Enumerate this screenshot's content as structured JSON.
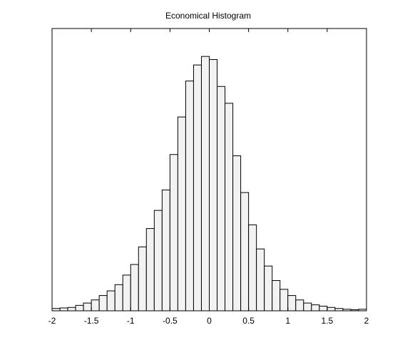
{
  "chart_data": {
    "type": "bar",
    "title": "Economical Histogram",
    "xlabel": "",
    "ylabel": "",
    "xlim": [
      -2,
      2
    ],
    "ylim": [
      0,
      1
    ],
    "x_ticks": [
      -2,
      -1.5,
      -1,
      -0.5,
      0,
      0.5,
      1,
      1.5,
      2
    ],
    "x_tick_labels": [
      "-2",
      "-1.5",
      "-1",
      "-0.5",
      "0",
      "0.5",
      "1",
      "1.5",
      "2"
    ],
    "y_ticks_visible": false,
    "grid": false,
    "bin_width": 0.1,
    "bin_edges_start": -2,
    "values": [
      0.009,
      0.011,
      0.013,
      0.021,
      0.03,
      0.042,
      0.059,
      0.077,
      0.101,
      0.138,
      0.179,
      0.247,
      0.318,
      0.388,
      0.467,
      0.604,
      0.749,
      0.888,
      0.95,
      0.983,
      0.971,
      0.867,
      0.802,
      0.599,
      0.457,
      0.332,
      0.239,
      0.173,
      0.117,
      0.083,
      0.059,
      0.042,
      0.03,
      0.023,
      0.018,
      0.013,
      0.009,
      0.006,
      0.004,
      0.006
    ],
    "bar_fill": "#f2f2f2",
    "bar_stroke": "#000000"
  }
}
